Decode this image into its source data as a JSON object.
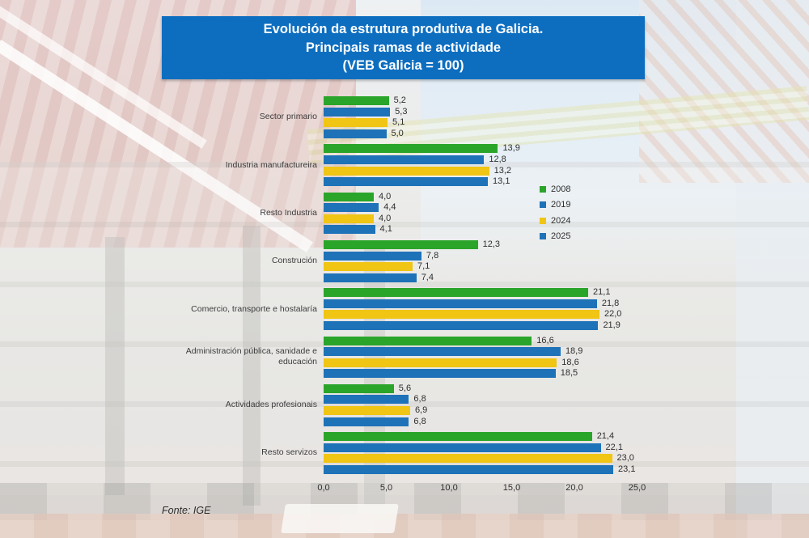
{
  "title": {
    "lines": [
      "Evolución da estrutura produtiva de Galicia.",
      "Principais ramas de actividade",
      "(VEB Galicia = 100)"
    ]
  },
  "source": "Fonte: IGE",
  "colors": {
    "title_bg": "#0d6ec0",
    "green": "#2aa52a",
    "blue": "#1e72b8",
    "yellow": "#f0c514"
  },
  "chart_data": {
    "type": "bar",
    "orientation": "horizontal",
    "title": "Evolución da estrutura produtiva de Galicia. Principais ramas de actividade (VEB Galicia = 100)",
    "categories": [
      "Sector primario",
      "Industria manufactureira",
      "Resto Industria",
      "Construción",
      "Comercio, transporte e hostalaría",
      "Administración pública, sanidade e educación",
      "Actividades profesionais",
      "Resto servizos"
    ],
    "series": [
      {
        "name": "2008",
        "color": "#2aa52a",
        "values": [
          5.2,
          13.9,
          4.0,
          12.3,
          21.1,
          16.6,
          5.6,
          21.4
        ]
      },
      {
        "name": "2019",
        "color": "#1e72b8",
        "values": [
          5.3,
          12.8,
          4.4,
          7.8,
          21.8,
          18.9,
          6.8,
          22.1
        ]
      },
      {
        "name": "2024",
        "color": "#f0c514",
        "values": [
          5.1,
          13.2,
          4.0,
          7.1,
          22.0,
          18.6,
          6.9,
          23.0
        ]
      },
      {
        "name": "2025",
        "color": "#1e72b8",
        "values": [
          5.0,
          13.1,
          4.1,
          7.4,
          21.9,
          18.5,
          6.8,
          23.1
        ]
      }
    ],
    "value_label_format": "comma-decimal-1",
    "x_ticks": [
      "0,0",
      "5,0",
      "10,0",
      "15,0",
      "20,0",
      "25,0"
    ],
    "xlim": [
      0,
      25
    ],
    "grid": false,
    "legend": [
      "2008",
      "2019",
      "2024",
      "2025"
    ],
    "legend_position": "right-upper"
  }
}
